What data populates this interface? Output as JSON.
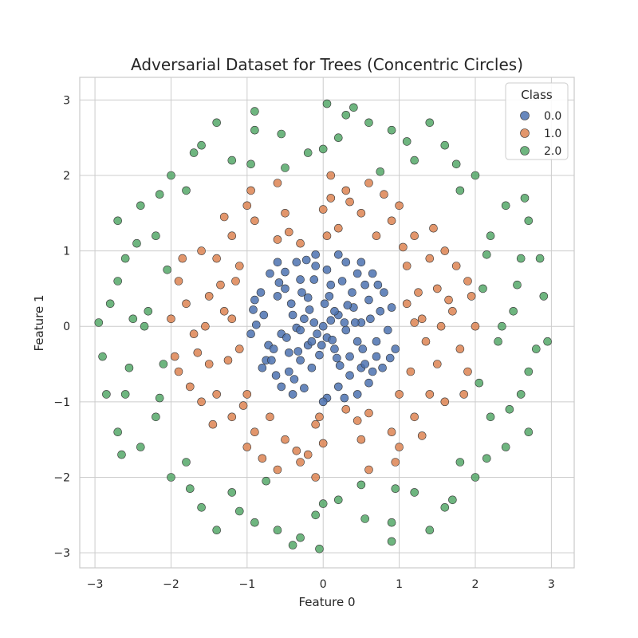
{
  "chart_data": {
    "type": "scatter",
    "title": "Adversarial Dataset for Trees (Concentric Circles)",
    "xlabel": "Feature 0",
    "ylabel": "Feature 1",
    "xlim": [
      -3.2,
      3.3
    ],
    "ylim": [
      -3.2,
      3.3
    ],
    "x_ticks": [
      -3,
      -2,
      -1,
      0,
      1,
      2,
      3
    ],
    "y_ticks": [
      -3,
      -2,
      -1,
      0,
      1,
      2,
      3
    ],
    "grid": true,
    "legend": {
      "title": "Class",
      "placement": "top-right"
    },
    "series": [
      {
        "name": "0.0",
        "color": "#4c72b0",
        "points": [
          [
            0.0,
            0.0
          ],
          [
            0.1,
            0.08
          ],
          [
            -0.12,
            0.05
          ],
          [
            0.05,
            -0.15
          ],
          [
            -0.08,
            -0.1
          ],
          [
            0.2,
            0.15
          ],
          [
            -0.25,
            0.1
          ],
          [
            0.15,
            -0.3
          ],
          [
            -0.2,
            -0.25
          ],
          [
            0.3,
            -0.05
          ],
          [
            -0.35,
            -0.02
          ],
          [
            0.02,
            0.3
          ],
          [
            -0.05,
            -0.38
          ],
          [
            0.4,
            0.25
          ],
          [
            -0.42,
            0.3
          ],
          [
            0.35,
            -0.4
          ],
          [
            -0.3,
            -0.45
          ],
          [
            0.5,
            0.05
          ],
          [
            -0.55,
            -0.1
          ],
          [
            0.1,
            0.55
          ],
          [
            -0.15,
            -0.55
          ],
          [
            0.6,
            0.35
          ],
          [
            -0.6,
            0.4
          ],
          [
            0.5,
            -0.55
          ],
          [
            -0.45,
            -0.6
          ],
          [
            0.25,
            0.6
          ],
          [
            -0.3,
            0.62
          ],
          [
            0.7,
            -0.2
          ],
          [
            -0.72,
            -0.25
          ],
          [
            0.05,
            0.75
          ],
          [
            -0.1,
            0.8
          ],
          [
            0.75,
            0.2
          ],
          [
            -0.78,
            0.15
          ],
          [
            0.45,
            0.7
          ],
          [
            -0.5,
            0.72
          ],
          [
            0.65,
            -0.6
          ],
          [
            -0.62,
            -0.65
          ],
          [
            0.2,
            -0.8
          ],
          [
            -0.25,
            -0.82
          ],
          [
            0.85,
            -0.05
          ],
          [
            -0.88,
            0.02
          ],
          [
            0.55,
            0.55
          ],
          [
            -0.58,
            0.58
          ],
          [
            0.3,
            0.85
          ],
          [
            -0.35,
            0.85
          ],
          [
            0.8,
            0.45
          ],
          [
            -0.82,
            0.45
          ],
          [
            0.6,
            -0.75
          ],
          [
            -0.55,
            -0.8
          ],
          [
            0.15,
            0.2
          ],
          [
            -0.18,
            0.22
          ],
          [
            0.12,
            -0.18
          ],
          [
            -0.15,
            -0.2
          ],
          [
            0.28,
            0.05
          ],
          [
            -0.3,
            -0.05
          ],
          [
            0.08,
            0.4
          ],
          [
            -0.02,
            -0.25
          ],
          [
            0.45,
            -0.2
          ],
          [
            -0.4,
            0.15
          ],
          [
            0.22,
            -0.52
          ],
          [
            -0.28,
            0.45
          ],
          [
            0.62,
            0.1
          ],
          [
            -0.65,
            -0.3
          ],
          [
            0.38,
            0.45
          ],
          [
            -0.45,
            -0.35
          ],
          [
            0.9,
            0.25
          ],
          [
            -0.95,
            -0.1
          ],
          [
            0.5,
            0.85
          ],
          [
            -0.6,
            0.85
          ],
          [
            0.7,
            -0.4
          ],
          [
            -0.75,
            -0.45
          ],
          [
            0.35,
            -0.65
          ],
          [
            -0.38,
            -0.7
          ],
          [
            0.95,
            -0.3
          ],
          [
            -0.9,
            0.35
          ],
          [
            0.2,
            0.95
          ],
          [
            -0.1,
            0.95
          ],
          [
            0.45,
            -0.9
          ],
          [
            -0.4,
            -0.9
          ],
          [
            0.65,
            0.7
          ],
          [
            -0.7,
            0.7
          ],
          [
            0.78,
            -0.55
          ],
          [
            -0.8,
            -0.55
          ],
          [
            0.05,
            -0.95
          ],
          [
            0.0,
            -1.0
          ],
          [
            0.55,
            -0.5
          ],
          [
            -0.5,
            0.5
          ],
          [
            0.42,
            0.05
          ],
          [
            -0.2,
            0.38
          ],
          [
            0.18,
            -0.42
          ],
          [
            -0.48,
            -0.15
          ],
          [
            0.32,
            0.28
          ],
          [
            -0.12,
            0.62
          ],
          [
            0.72,
            0.55
          ],
          [
            -0.68,
            -0.45
          ],
          [
            0.28,
            -0.95
          ],
          [
            -0.22,
            0.88
          ],
          [
            0.88,
            -0.42
          ],
          [
            -0.92,
            0.22
          ],
          [
            0.52,
            -0.3
          ],
          [
            -0.33,
            -0.33
          ]
        ]
      },
      {
        "name": "1.0",
        "color": "#dd8452",
        "points": [
          [
            1.3,
            0.1
          ],
          [
            -1.3,
            0.2
          ],
          [
            0.2,
            1.3
          ],
          [
            -0.1,
            -1.3
          ],
          [
            1.1,
            0.8
          ],
          [
            -1.1,
            0.8
          ],
          [
            1.0,
            -0.9
          ],
          [
            -1.0,
            -0.9
          ],
          [
            1.5,
            0.5
          ],
          [
            -1.5,
            0.4
          ],
          [
            0.5,
            1.5
          ],
          [
            -0.5,
            1.5
          ],
          [
            1.5,
            -0.5
          ],
          [
            -1.5,
            -0.5
          ],
          [
            0.5,
            -1.5
          ],
          [
            -0.5,
            -1.5
          ],
          [
            1.7,
            0.2
          ],
          [
            -1.7,
            -0.1
          ],
          [
            0.1,
            1.7
          ],
          [
            -0.2,
            -1.7
          ],
          [
            1.2,
            1.2
          ],
          [
            -1.2,
            1.2
          ],
          [
            1.2,
            -1.2
          ],
          [
            -1.2,
            -1.2
          ],
          [
            1.8,
            -0.3
          ],
          [
            -1.8,
            0.3
          ],
          [
            0.3,
            1.8
          ],
          [
            -0.3,
            -1.8
          ],
          [
            1.4,
            0.9
          ],
          [
            -1.4,
            0.9
          ],
          [
            1.4,
            -0.9
          ],
          [
            -1.4,
            -0.9
          ],
          [
            0.9,
            1.4
          ],
          [
            -0.9,
            1.4
          ],
          [
            0.9,
            -1.4
          ],
          [
            -0.9,
            -1.4
          ],
          [
            1.6,
            1.0
          ],
          [
            -1.6,
            1.0
          ],
          [
            1.6,
            -1.0
          ],
          [
            -1.6,
            -1.0
          ],
          [
            1.0,
            1.6
          ],
          [
            -1.0,
            1.6
          ],
          [
            1.0,
            -1.6
          ],
          [
            -1.0,
            -1.6
          ],
          [
            1.9,
            0.6
          ],
          [
            -1.9,
            0.6
          ],
          [
            1.9,
            -0.6
          ],
          [
            -1.9,
            -0.6
          ],
          [
            0.6,
            1.9
          ],
          [
            -0.6,
            1.9
          ],
          [
            0.6,
            -1.9
          ],
          [
            -0.6,
            -1.9
          ],
          [
            1.25,
            0.45
          ],
          [
            -1.25,
            -0.45
          ],
          [
            0.45,
            -1.25
          ],
          [
            -0.45,
            1.25
          ],
          [
            1.55,
            0.0
          ],
          [
            -1.55,
            0.0
          ],
          [
            0.0,
            1.55
          ],
          [
            0.0,
            -1.55
          ],
          [
            1.75,
            0.8
          ],
          [
            -1.75,
            -0.8
          ],
          [
            0.8,
            1.75
          ],
          [
            -0.8,
            -1.75
          ],
          [
            1.1,
            0.3
          ],
          [
            -1.1,
            -0.3
          ],
          [
            0.3,
            -1.1
          ],
          [
            -0.3,
            1.1
          ],
          [
            1.35,
            -0.2
          ],
          [
            -1.35,
            0.55
          ],
          [
            0.7,
            1.2
          ],
          [
            -0.7,
            -1.2
          ],
          [
            1.85,
            -0.9
          ],
          [
            -1.85,
            0.9
          ],
          [
            0.95,
            -1.8
          ],
          [
            -0.95,
            1.8
          ],
          [
            1.45,
            1.3
          ],
          [
            -1.45,
            -1.3
          ],
          [
            1.3,
            -1.45
          ],
          [
            -1.3,
            1.45
          ],
          [
            2.0,
            0.0
          ],
          [
            -2.0,
            0.1
          ],
          [
            0.1,
            2.0
          ],
          [
            -0.1,
            -2.0
          ],
          [
            1.05,
            1.05
          ],
          [
            -1.05,
            -1.05
          ],
          [
            1.65,
            0.35
          ],
          [
            -1.65,
            -0.35
          ],
          [
            0.35,
            1.65
          ],
          [
            -0.35,
            -1.65
          ],
          [
            1.2,
            0.05
          ],
          [
            -1.2,
            0.1
          ],
          [
            0.05,
            1.2
          ],
          [
            -0.05,
            -1.2
          ],
          [
            1.15,
            -0.6
          ],
          [
            -1.15,
            0.6
          ],
          [
            0.6,
            -1.15
          ],
          [
            -0.6,
            1.15
          ],
          [
            1.95,
            0.4
          ],
          [
            -1.95,
            -0.4
          ]
        ]
      },
      {
        "name": "2.0",
        "color": "#55a868",
        "points": [
          [
            2.5,
            0.2
          ],
          [
            -2.5,
            0.1
          ],
          [
            0.2,
            2.5
          ],
          [
            -0.1,
            -2.5
          ],
          [
            2.2,
            1.2
          ],
          [
            -2.2,
            1.2
          ],
          [
            2.2,
            -1.2
          ],
          [
            -2.2,
            -1.2
          ],
          [
            1.2,
            2.2
          ],
          [
            -1.2,
            2.2
          ],
          [
            1.2,
            -2.2
          ],
          [
            -1.2,
            -2.2
          ],
          [
            2.8,
            -0.3
          ],
          [
            -2.8,
            0.3
          ],
          [
            0.3,
            2.8
          ],
          [
            -0.3,
            -2.8
          ],
          [
            2.6,
            0.9
          ],
          [
            -2.6,
            0.9
          ],
          [
            2.6,
            -0.9
          ],
          [
            -2.6,
            -0.9
          ],
          [
            0.9,
            2.6
          ],
          [
            -0.9,
            2.6
          ],
          [
            0.9,
            -2.6
          ],
          [
            -0.9,
            -2.6
          ],
          [
            1.8,
            1.8
          ],
          [
            -1.8,
            1.8
          ],
          [
            1.8,
            -1.8
          ],
          [
            -1.8,
            -1.8
          ],
          [
            2.9,
            0.4
          ],
          [
            -2.9,
            -0.4
          ],
          [
            0.4,
            2.9
          ],
          [
            -0.4,
            -2.9
          ],
          [
            2.4,
            1.6
          ],
          [
            -2.4,
            1.6
          ],
          [
            2.4,
            -1.6
          ],
          [
            -2.4,
            -1.6
          ],
          [
            1.6,
            2.4
          ],
          [
            -1.6,
            2.4
          ],
          [
            1.6,
            -2.4
          ],
          [
            -1.6,
            -2.4
          ],
          [
            2.1,
            0.5
          ],
          [
            -2.1,
            -0.5
          ],
          [
            0.5,
            -2.1
          ],
          [
            -0.5,
            2.1
          ],
          [
            2.7,
            -0.6
          ],
          [
            -2.7,
            0.6
          ],
          [
            0.6,
            2.7
          ],
          [
            -0.6,
            -2.7
          ],
          [
            2.3,
            -0.2
          ],
          [
            -2.3,
            0.2
          ],
          [
            0.2,
            -2.3
          ],
          [
            -0.2,
            2.3
          ],
          [
            2.0,
            2.0
          ],
          [
            -2.0,
            2.0
          ],
          [
            2.0,
            -2.0
          ],
          [
            -2.0,
            -2.0
          ],
          [
            1.4,
            2.7
          ],
          [
            -1.4,
            2.7
          ],
          [
            1.4,
            -2.7
          ],
          [
            -1.4,
            -2.7
          ],
          [
            2.7,
            1.4
          ],
          [
            -2.7,
            1.4
          ],
          [
            2.7,
            -1.4
          ],
          [
            -2.7,
            -1.4
          ],
          [
            2.95,
            -0.2
          ],
          [
            -2.95,
            0.05
          ],
          [
            0.05,
            2.95
          ],
          [
            -0.05,
            -2.95
          ],
          [
            2.15,
            0.95
          ],
          [
            -2.15,
            -0.95
          ],
          [
            0.95,
            -2.15
          ],
          [
            -0.95,
            2.15
          ],
          [
            2.45,
            -1.1
          ],
          [
            -2.45,
            1.1
          ],
          [
            1.1,
            2.45
          ],
          [
            -1.1,
            -2.45
          ],
          [
            2.55,
            0.55
          ],
          [
            -2.55,
            -0.55
          ],
          [
            0.55,
            -2.55
          ],
          [
            -0.55,
            2.55
          ],
          [
            1.75,
            2.15
          ],
          [
            -1.75,
            -2.15
          ],
          [
            2.15,
            -1.75
          ],
          [
            -2.15,
            1.75
          ],
          [
            2.35,
            0.0
          ],
          [
            -2.35,
            0.0
          ],
          [
            0.0,
            2.35
          ],
          [
            0.0,
            -2.35
          ],
          [
            2.85,
            0.9
          ],
          [
            -2.85,
            -0.9
          ],
          [
            0.9,
            -2.85
          ],
          [
            -0.9,
            2.85
          ],
          [
            2.05,
            -0.75
          ],
          [
            -2.05,
            0.75
          ],
          [
            0.75,
            2.05
          ],
          [
            -0.75,
            -2.05
          ],
          [
            2.65,
            1.7
          ],
          [
            -2.65,
            -1.7
          ],
          [
            1.7,
            -2.3
          ],
          [
            -1.7,
            2.3
          ]
        ]
      }
    ]
  }
}
